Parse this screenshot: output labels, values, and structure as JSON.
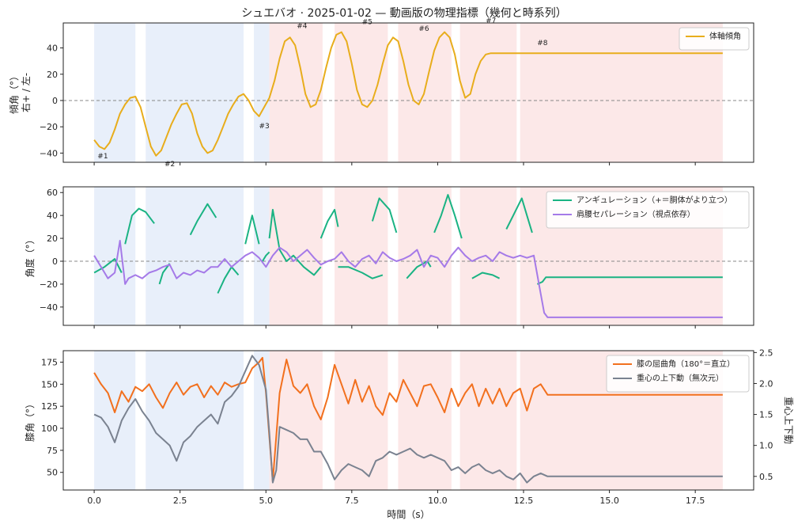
{
  "title": "シュエバオ · 2025-01-02 — 動画版の物理指標（幾何と時系列）",
  "segments": [
    {
      "kind": "blue",
      "start": 0.0,
      "end": 1.2
    },
    {
      "kind": "blue",
      "start": 1.5,
      "end": 4.35
    },
    {
      "kind": "blue",
      "start": 4.65,
      "end": 5.1
    },
    {
      "kind": "red",
      "start": 5.1,
      "end": 6.65
    },
    {
      "kind": "red",
      "start": 7.0,
      "end": 8.55
    },
    {
      "kind": "red",
      "start": 8.85,
      "end": 10.4
    },
    {
      "kind": "red",
      "start": 10.65,
      "end": 12.3
    },
    {
      "kind": "red",
      "start": 12.4,
      "end": 18.3
    }
  ],
  "colors": {
    "blue_band": "#dce6f8",
    "red_band": "#fbdcdc",
    "tilt": "#e8ad1c",
    "angulation": "#1ab383",
    "separation": "#a57ae8",
    "knee": "#f2701e",
    "com": "#7a8290"
  },
  "chart_data": [
    {
      "type": "line",
      "ylabel": "傾角（°）\n右+ / 左-",
      "xlim": [
        -0.9,
        19.2
      ],
      "ylim": [
        -47,
        59
      ],
      "yticks": [
        -40,
        -20,
        0,
        20,
        40
      ],
      "legend_position": "upper-right",
      "zero_line": true,
      "series": [
        {
          "name": "体軸傾角",
          "color_key": "tilt",
          "x": [
            0.0,
            0.15,
            0.3,
            0.45,
            0.6,
            0.75,
            0.9,
            1.05,
            1.2,
            1.35,
            1.5,
            1.65,
            1.8,
            1.95,
            2.1,
            2.25,
            2.4,
            2.55,
            2.7,
            2.85,
            3.0,
            3.15,
            3.3,
            3.45,
            3.6,
            3.75,
            3.9,
            4.05,
            4.2,
            4.35,
            4.5,
            4.65,
            4.8,
            4.95,
            5.1,
            5.25,
            5.4,
            5.55,
            5.7,
            5.85,
            6.0,
            6.15,
            6.3,
            6.45,
            6.6,
            6.75,
            6.9,
            7.05,
            7.2,
            7.35,
            7.5,
            7.65,
            7.8,
            7.95,
            8.1,
            8.25,
            8.4,
            8.55,
            8.7,
            8.85,
            9.0,
            9.15,
            9.3,
            9.45,
            9.6,
            9.75,
            9.9,
            10.05,
            10.2,
            10.35,
            10.5,
            10.65,
            10.8,
            10.95,
            11.1,
            11.25,
            11.4,
            11.55,
            11.7,
            11.85,
            12.0,
            12.15,
            12.3,
            12.45,
            12.6,
            12.75,
            12.9,
            13.05,
            13.2,
            14.0,
            15.0,
            16.0,
            17.0,
            18.3
          ],
          "y": [
            -30,
            -35,
            -37,
            -32,
            -22,
            -10,
            -3,
            2,
            3,
            -5,
            -20,
            -35,
            -42,
            -38,
            -28,
            -18,
            -10,
            -3,
            -2,
            -10,
            -25,
            -35,
            -40,
            -38,
            -30,
            -20,
            -10,
            -3,
            3,
            5,
            0,
            -8,
            -12,
            -5,
            2,
            15,
            32,
            45,
            48,
            42,
            25,
            5,
            -5,
            -3,
            8,
            25,
            40,
            50,
            52,
            45,
            28,
            8,
            -3,
            -5,
            0,
            12,
            28,
            42,
            48,
            45,
            30,
            12,
            0,
            -3,
            5,
            22,
            38,
            48,
            52,
            48,
            35,
            15,
            2,
            5,
            20,
            30,
            35,
            36,
            36,
            36,
            36,
            36,
            36,
            36,
            36,
            36,
            36,
            36,
            36,
            36,
            36,
            36,
            36,
            36
          ]
        }
      ],
      "annotations": [
        {
          "text": "#1",
          "x": 0.25,
          "y": -44
        },
        {
          "text": "#2",
          "x": 2.2,
          "y": -50
        },
        {
          "text": "#3",
          "x": 4.95,
          "y": -21
        },
        {
          "text": "#4",
          "x": 6.05,
          "y": 55
        },
        {
          "text": "#5",
          "x": 7.95,
          "y": 58
        },
        {
          "text": "#6",
          "x": 9.6,
          "y": 53
        },
        {
          "text": "#7",
          "x": 11.55,
          "y": 59
        },
        {
          "text": "#8",
          "x": 13.05,
          "y": 42
        }
      ]
    },
    {
      "type": "line",
      "ylabel": "角度（°）",
      "xlim": [
        -0.9,
        19.2
      ],
      "ylim": [
        -56,
        65
      ],
      "yticks": [
        -40,
        -20,
        0,
        20,
        40,
        60
      ],
      "legend_position": "upper-right",
      "zero_line": true,
      "series": [
        {
          "name": "アンギュレーション（+＝胴体がより立つ）",
          "color_key": "angulation",
          "segments": [
            {
              "x": [
                0.0,
                0.3,
                0.6,
                0.8
              ],
              "y": [
                -10,
                -5,
                2,
                -10
              ]
            },
            {
              "x": [
                0.9,
                1.1,
                1.3,
                1.5,
                1.75
              ],
              "y": [
                15,
                40,
                46,
                43,
                33
              ]
            },
            {
              "x": [
                1.9,
                2.0,
                2.2
              ],
              "y": [
                -20,
                -10,
                -2
              ]
            },
            {
              "x": [
                2.8,
                3.0,
                3.3,
                3.55
              ],
              "y": [
                23,
                35,
                50,
                38
              ]
            },
            {
              "x": [
                3.6,
                3.8,
                4.0,
                4.2
              ],
              "y": [
                -28,
                -15,
                -5,
                -12
              ]
            },
            {
              "x": [
                4.4,
                4.6,
                4.8
              ],
              "y": [
                15,
                40,
                15
              ]
            },
            {
              "x": [
                4.9,
                5.0,
                5.1
              ],
              "y": [
                0,
                5,
                8
              ]
            },
            {
              "x": [
                5.1,
                5.2,
                5.4,
                5.6,
                5.8,
                6.1,
                6.4,
                6.6
              ],
              "y": [
                20,
                45,
                10,
                0,
                5,
                -5,
                -12,
                -5
              ]
            },
            {
              "x": [
                6.6,
                6.8,
                7.0,
                7.1
              ],
              "y": [
                20,
                35,
                45,
                30
              ]
            },
            {
              "x": [
                7.1,
                7.4,
                7.8,
                8.1,
                8.4
              ],
              "y": [
                -5,
                -5,
                -10,
                -15,
                -12
              ]
            },
            {
              "x": [
                8.1,
                8.3,
                8.6,
                8.8
              ],
              "y": [
                35,
                55,
                45,
                25
              ]
            },
            {
              "x": [
                9.1,
                9.4,
                9.7,
                9.8
              ],
              "y": [
                -15,
                -5,
                0,
                -5
              ]
            },
            {
              "x": [
                9.9,
                10.1,
                10.3,
                10.5,
                10.7
              ],
              "y": [
                25,
                40,
                58,
                40,
                20
              ]
            },
            {
              "x": [
                11.0,
                11.3,
                11.6,
                11.8
              ],
              "y": [
                -15,
                -10,
                -12,
                -15
              ]
            },
            {
              "x": [
                12.0,
                12.2,
                12.45,
                12.6,
                12.75
              ],
              "y": [
                28,
                40,
                55,
                40,
                25
              ]
            },
            {
              "x": [
                12.9,
                13.05,
                13.15,
                14.0,
                15.0,
                16.0,
                17.0,
                18.3
              ],
              "y": [
                -20,
                -18,
                -14,
                -14,
                -14,
                -14,
                -14,
                -14
              ]
            }
          ]
        },
        {
          "name": "肩腰セパレーション（視点依存）",
          "color_key": "separation",
          "x": [
            0.0,
            0.2,
            0.4,
            0.6,
            0.75,
            0.9,
            1.0,
            1.2,
            1.4,
            1.6,
            1.8,
            2.0,
            2.2,
            2.4,
            2.6,
            2.8,
            3.0,
            3.2,
            3.4,
            3.6,
            3.8,
            4.0,
            4.2,
            4.4,
            4.6,
            4.8,
            5.0,
            5.2,
            5.4,
            5.6,
            5.8,
            6.0,
            6.2,
            6.4,
            6.6,
            6.8,
            7.0,
            7.2,
            7.4,
            7.6,
            7.8,
            8.0,
            8.2,
            8.4,
            8.6,
            8.8,
            9.0,
            9.2,
            9.4,
            9.6,
            9.8,
            10.0,
            10.2,
            10.4,
            10.6,
            10.8,
            11.0,
            11.2,
            11.4,
            11.6,
            11.8,
            12.0,
            12.2,
            12.4,
            12.6,
            12.8,
            12.95,
            13.1,
            13.2,
            14.0,
            15.0,
            16.0,
            17.0,
            18.3
          ],
          "y": [
            5,
            -5,
            -15,
            -10,
            18,
            -20,
            -15,
            -12,
            -15,
            -10,
            -8,
            -5,
            -3,
            -15,
            -10,
            -12,
            -8,
            -10,
            -5,
            -5,
            2,
            -5,
            0,
            5,
            8,
            3,
            -5,
            5,
            12,
            8,
            0,
            5,
            10,
            3,
            -3,
            0,
            2,
            8,
            0,
            -5,
            2,
            5,
            -2,
            8,
            3,
            0,
            2,
            5,
            10,
            -5,
            5,
            3,
            -5,
            5,
            12,
            5,
            0,
            3,
            5,
            0,
            8,
            5,
            3,
            5,
            3,
            5,
            -20,
            -45,
            -49,
            -49,
            -49,
            -49,
            -49,
            -49
          ]
        }
      ]
    },
    {
      "type": "line",
      "ylabel": "膝角（°）",
      "y2label": "重心上下動",
      "xlabel": "時間（s）",
      "xlim": [
        -0.9,
        19.2
      ],
      "ylim": [
        30,
        188
      ],
      "y2lim": [
        0.28,
        2.53
      ],
      "yticks": [
        50,
        75,
        100,
        125,
        150,
        175
      ],
      "y2ticks": [
        0.5,
        1.0,
        1.5,
        2.0,
        2.5
      ],
      "xticks": [
        0.0,
        2.5,
        5.0,
        7.5,
        10.0,
        12.5,
        15.0,
        17.5
      ],
      "xticklabels": [
        "0.0",
        "2.5",
        "5.0",
        "7.5",
        "10.0",
        "12.5",
        "15.0",
        "17.5"
      ],
      "legend_position": "upper-right",
      "series": [
        {
          "name": "膝の屈曲角（180°＝直立）",
          "color_key": "knee",
          "axis": "left",
          "x": [
            0.0,
            0.2,
            0.4,
            0.6,
            0.8,
            1.0,
            1.2,
            1.4,
            1.6,
            1.8,
            2.0,
            2.2,
            2.4,
            2.6,
            2.8,
            3.0,
            3.2,
            3.4,
            3.6,
            3.8,
            4.0,
            4.2,
            4.4,
            4.6,
            4.8,
            4.9,
            5.0,
            5.2,
            5.4,
            5.6,
            5.8,
            6.0,
            6.2,
            6.4,
            6.6,
            6.8,
            7.0,
            7.2,
            7.4,
            7.6,
            7.8,
            8.0,
            8.2,
            8.4,
            8.6,
            8.8,
            9.0,
            9.2,
            9.4,
            9.6,
            9.8,
            10.0,
            10.2,
            10.4,
            10.6,
            10.8,
            11.0,
            11.2,
            11.4,
            11.6,
            11.8,
            12.0,
            12.2,
            12.4,
            12.6,
            12.8,
            13.0,
            13.2,
            14.0,
            15.0,
            16.0,
            17.0,
            18.3
          ],
          "y": [
            163,
            150,
            140,
            118,
            142,
            130,
            147,
            142,
            150,
            135,
            123,
            140,
            152,
            138,
            147,
            150,
            135,
            148,
            138,
            152,
            147,
            150,
            152,
            168,
            175,
            180,
            140,
            40,
            140,
            178,
            148,
            140,
            150,
            125,
            110,
            135,
            172,
            150,
            128,
            155,
            130,
            148,
            125,
            115,
            140,
            130,
            155,
            140,
            125,
            148,
            150,
            135,
            118,
            145,
            125,
            140,
            150,
            125,
            145,
            128,
            145,
            125,
            140,
            145,
            120,
            145,
            150,
            138,
            138,
            138,
            138,
            138,
            138
          ]
        },
        {
          "name": "重心の上下動（無次元）",
          "color_key": "com",
          "axis": "right",
          "x": [
            0.0,
            0.2,
            0.4,
            0.6,
            0.8,
            1.0,
            1.2,
            1.4,
            1.6,
            1.8,
            2.0,
            2.2,
            2.4,
            2.6,
            2.8,
            3.0,
            3.2,
            3.4,
            3.6,
            3.8,
            4.0,
            4.2,
            4.4,
            4.6,
            4.8,
            5.0,
            5.1,
            5.2,
            5.3,
            5.4,
            5.6,
            5.8,
            6.0,
            6.2,
            6.4,
            6.6,
            6.8,
            7.0,
            7.2,
            7.4,
            7.6,
            7.8,
            8.0,
            8.2,
            8.4,
            8.6,
            8.8,
            9.0,
            9.2,
            9.4,
            9.6,
            9.8,
            10.0,
            10.2,
            10.4,
            10.6,
            10.8,
            11.0,
            11.2,
            11.4,
            11.6,
            11.8,
            12.0,
            12.2,
            12.4,
            12.6,
            12.8,
            13.0,
            13.2,
            14.0,
            15.0,
            16.0,
            17.0,
            18.3
          ],
          "y": [
            1.5,
            1.45,
            1.3,
            1.05,
            1.4,
            1.6,
            1.75,
            1.55,
            1.4,
            1.2,
            1.1,
            1.0,
            0.75,
            1.05,
            1.15,
            1.3,
            1.4,
            1.5,
            1.35,
            1.7,
            1.8,
            1.95,
            2.2,
            2.45,
            2.3,
            1.9,
            1.2,
            0.4,
            0.6,
            1.3,
            1.25,
            1.2,
            1.1,
            1.1,
            0.9,
            0.9,
            0.7,
            0.45,
            0.6,
            0.7,
            0.65,
            0.6,
            0.5,
            0.75,
            0.8,
            0.9,
            0.85,
            0.9,
            0.95,
            0.85,
            0.8,
            0.85,
            0.8,
            0.75,
            0.6,
            0.65,
            0.55,
            0.65,
            0.7,
            0.6,
            0.55,
            0.6,
            0.5,
            0.45,
            0.55,
            0.4,
            0.5,
            0.55,
            0.5,
            0.5,
            0.5,
            0.5,
            0.5,
            0.5
          ]
        }
      ]
    }
  ]
}
